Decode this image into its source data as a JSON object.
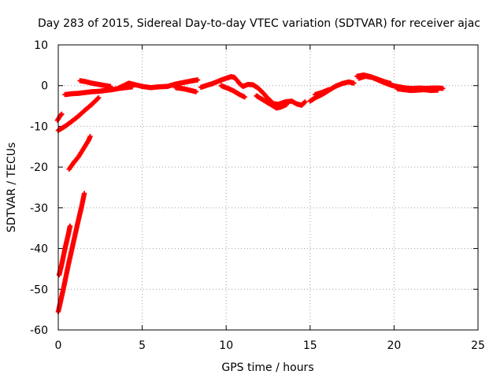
{
  "chart_data": {
    "type": "scatter",
    "title": "Day 283 of 2015, Sidereal Day-to-day VTEC variation (SDTVAR) for receiver ajac",
    "xlabel": "GPS time / hours",
    "ylabel": "SDTVAR / TECUs",
    "xlim": [
      0,
      25
    ],
    "ylim": [
      -60,
      10
    ],
    "xticks": [
      "0",
      "5",
      "10",
      "15",
      "20",
      "25"
    ],
    "yticks": [
      "10",
      "0",
      "-10",
      "-20",
      "-30",
      "-40",
      "-50",
      "-60"
    ],
    "grid": true,
    "marker": "plus",
    "series": [
      {
        "name": "SDTVAR",
        "color": "#ff0000",
        "segments": [
          [
            [
              -0.05,
              -8.5
            ],
            [
              0.1,
              -7.5
            ],
            [
              0.2,
              -7.0
            ]
          ],
          [
            [
              0.0,
              -11.0
            ],
            [
              0.4,
              -10.0
            ],
            [
              0.8,
              -8.8
            ],
            [
              1.2,
              -7.5
            ],
            [
              1.6,
              -6.0
            ],
            [
              2.0,
              -4.6
            ],
            [
              2.4,
              -3.0
            ]
          ],
          [
            [
              0.4,
              -2.2
            ],
            [
              0.8,
              -2.0
            ],
            [
              1.2,
              -1.9
            ],
            [
              1.6,
              -1.7
            ],
            [
              2.0,
              -1.5
            ],
            [
              2.4,
              -1.4
            ],
            [
              2.8,
              -1.2
            ],
            [
              3.2,
              -1.0
            ],
            [
              3.6,
              -0.7
            ],
            [
              4.0,
              -0.5
            ],
            [
              4.4,
              -0.3
            ]
          ],
          [
            [
              1.3,
              1.2
            ],
            [
              1.6,
              1.0
            ],
            [
              2.0,
              0.6
            ],
            [
              2.4,
              0.3
            ],
            [
              2.8,
              0.0
            ],
            [
              3.1,
              -0.2
            ]
          ],
          [
            [
              0.65,
              -20.5
            ],
            [
              0.9,
              -19.0
            ],
            [
              1.2,
              -17.5
            ],
            [
              1.5,
              -15.5
            ],
            [
              1.8,
              -13.5
            ],
            [
              1.9,
              -12.5
            ]
          ],
          [
            [
              0.0,
              -55.5
            ],
            [
              0.3,
              -50.0
            ],
            [
              0.6,
              -44.0
            ],
            [
              0.9,
              -38.5
            ],
            [
              1.2,
              -33.0
            ],
            [
              1.4,
              -29.5
            ],
            [
              1.55,
              -26.5
            ]
          ],
          [
            [
              0.05,
              -46.5
            ],
            [
              0.2,
              -44.0
            ],
            [
              0.4,
              -40.0
            ],
            [
              0.6,
              -36.5
            ],
            [
              0.7,
              -34.5
            ]
          ],
          [
            [
              3.5,
              -0.8
            ],
            [
              3.8,
              -0.2
            ],
            [
              4.2,
              0.6
            ],
            [
              4.6,
              0.2
            ],
            [
              5.0,
              -0.2
            ],
            [
              5.5,
              -0.5
            ],
            [
              6.0,
              -0.3
            ],
            [
              6.5,
              -0.2
            ],
            [
              7.0,
              0.4
            ],
            [
              7.5,
              0.8
            ],
            [
              8.0,
              1.2
            ],
            [
              8.3,
              1.4
            ]
          ],
          [
            [
              7.0,
              -0.5
            ],
            [
              7.5,
              -0.8
            ],
            [
              7.9,
              -1.2
            ],
            [
              8.2,
              -1.5
            ]
          ],
          [
            [
              8.5,
              -0.4
            ],
            [
              8.8,
              0.0
            ],
            [
              9.2,
              0.5
            ],
            [
              9.6,
              1.2
            ],
            [
              10.0,
              1.8
            ],
            [
              10.3,
              2.2
            ],
            [
              10.5,
              2.0
            ],
            [
              10.8,
              0.5
            ],
            [
              11.0,
              -0.2
            ],
            [
              11.3,
              0.3
            ],
            [
              11.6,
              0.2
            ],
            [
              11.9,
              -0.6
            ],
            [
              12.2,
              -1.8
            ],
            [
              12.5,
              -3.2
            ],
            [
              12.8,
              -4.4
            ],
            [
              13.1,
              -4.6
            ],
            [
              13.5,
              -4.0
            ],
            [
              13.9,
              -3.8
            ],
            [
              14.2,
              -4.5
            ],
            [
              14.5,
              -4.8
            ],
            [
              14.7,
              -4.0
            ]
          ],
          [
            [
              9.7,
              0.0
            ],
            [
              10.0,
              -0.5
            ],
            [
              10.4,
              -1.2
            ],
            [
              10.8,
              -2.2
            ],
            [
              11.1,
              -2.8
            ]
          ],
          [
            [
              11.8,
              -2.5
            ],
            [
              12.2,
              -3.5
            ],
            [
              12.6,
              -4.5
            ],
            [
              13.0,
              -5.5
            ],
            [
              13.3,
              -5.2
            ],
            [
              13.6,
              -4.6
            ]
          ],
          [
            [
              15.0,
              -3.8
            ],
            [
              15.3,
              -3.0
            ],
            [
              15.7,
              -2.2
            ],
            [
              16.1,
              -1.2
            ],
            [
              16.5,
              -0.2
            ],
            [
              16.9,
              0.5
            ],
            [
              17.3,
              0.9
            ],
            [
              17.6,
              0.6
            ]
          ],
          [
            [
              15.3,
              -2.2
            ],
            [
              15.7,
              -1.7
            ],
            [
              16.1,
              -1.0
            ]
          ],
          [
            [
              17.9,
              1.8
            ],
            [
              18.3,
              2.3
            ],
            [
              18.7,
              2.0
            ],
            [
              19.1,
              1.3
            ],
            [
              19.5,
              0.6
            ],
            [
              19.9,
              0.0
            ],
            [
              20.3,
              -0.3
            ],
            [
              20.7,
              -0.6
            ],
            [
              21.1,
              -0.7
            ],
            [
              21.5,
              -0.6
            ],
            [
              21.9,
              -0.7
            ],
            [
              22.3,
              -0.6
            ],
            [
              22.7,
              -0.6
            ],
            [
              22.9,
              -0.7
            ]
          ],
          [
            [
              17.8,
              2.3
            ],
            [
              18.2,
              2.6
            ],
            [
              18.6,
              2.2
            ],
            [
              19.0,
              1.6
            ],
            [
              19.4,
              1.0
            ],
            [
              19.8,
              0.5
            ]
          ],
          [
            [
              20.2,
              -0.8
            ],
            [
              20.6,
              -1.0
            ],
            [
              21.0,
              -1.2
            ],
            [
              21.4,
              -1.1
            ],
            [
              21.8,
              -1.0
            ],
            [
              22.2,
              -1.2
            ],
            [
              22.6,
              -1.1
            ]
          ]
        ]
      }
    ]
  }
}
